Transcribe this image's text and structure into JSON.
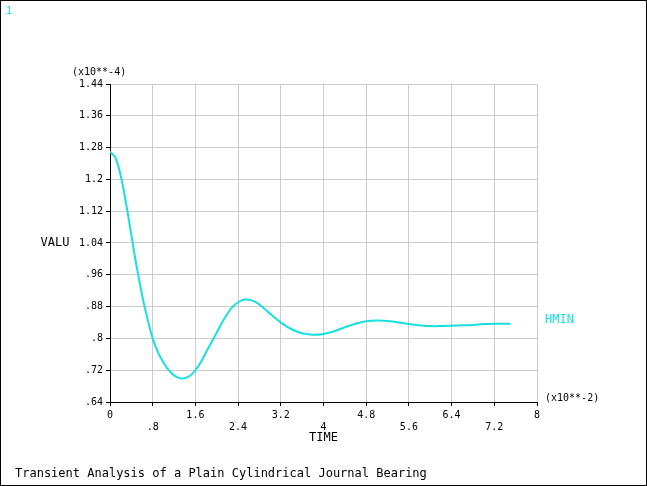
{
  "chart_data": {
    "type": "line",
    "title": "Transient Analysis of a Plain Cylindrical Journal Bearing",
    "frame_label": "1",
    "x_label": "TIME",
    "y_label": "VALU",
    "x_multiplier": "(x10**-2)",
    "y_multiplier": "(x10**-4)",
    "x": [
      0,
      0.1,
      0.2,
      0.3,
      0.4,
      0.5,
      0.6,
      0.7,
      0.8,
      0.9,
      1.0,
      1.1,
      1.2,
      1.3,
      1.4,
      1.5,
      1.6,
      1.7,
      1.8,
      1.9,
      2.0,
      2.1,
      2.2,
      2.3,
      2.4,
      2.5,
      2.6,
      2.7,
      2.8,
      2.9,
      3.0,
      3.2,
      3.4,
      3.6,
      3.8,
      4.0,
      4.2,
      4.4,
      4.6,
      4.8,
      5.0,
      5.2,
      5.4,
      5.6,
      5.8,
      6.0,
      6.2,
      6.4,
      6.6,
      6.8,
      7.0,
      7.2,
      7.4,
      7.5
    ],
    "series": [
      {
        "name": "HMIN",
        "color": "#18e0e0",
        "values": [
          1.27,
          1.255,
          1.21,
          1.14,
          1.06,
          0.98,
          0.91,
          0.85,
          0.8,
          0.765,
          0.74,
          0.72,
          0.707,
          0.7,
          0.7,
          0.706,
          0.72,
          0.74,
          0.765,
          0.79,
          0.815,
          0.84,
          0.862,
          0.88,
          0.891,
          0.897,
          0.897,
          0.893,
          0.885,
          0.874,
          0.862,
          0.84,
          0.823,
          0.813,
          0.809,
          0.811,
          0.818,
          0.828,
          0.837,
          0.843,
          0.845,
          0.844,
          0.84,
          0.836,
          0.833,
          0.831,
          0.831,
          0.832,
          0.833,
          0.834,
          0.836,
          0.837,
          0.837,
          0.837
        ]
      }
    ],
    "xlim": [
      0,
      8
    ],
    "ylim": [
      0.64,
      1.44
    ],
    "xticks": [
      0,
      {
        "value": 0.8,
        "label": ".8"
      },
      1.6,
      2.4,
      3.2,
      4,
      4.8,
      5.6,
      6.4,
      7.2,
      8
    ],
    "yticks": [
      {
        "value": 0.64,
        "label": ".64"
      },
      {
        "value": 0.72,
        "label": ".72"
      },
      {
        "value": 0.8,
        "label": ".8"
      },
      {
        "value": 0.88,
        "label": ".88"
      },
      {
        "value": 0.96,
        "label": ".96"
      },
      1.04,
      1.12,
      1.2,
      1.28,
      1.36,
      1.44
    ],
    "grid": true,
    "legend": "right"
  }
}
